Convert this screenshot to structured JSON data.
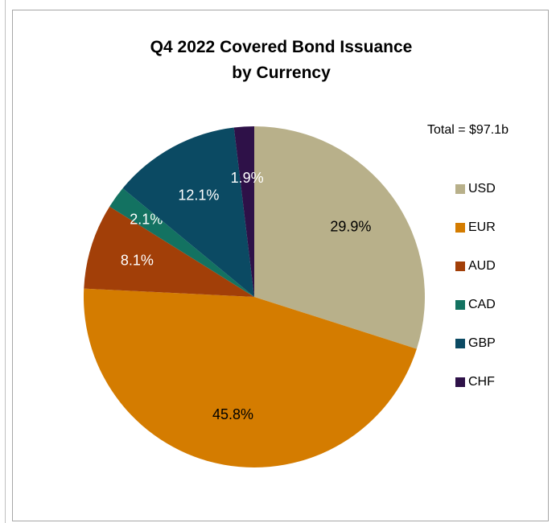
{
  "chart_data": {
    "type": "pie",
    "title": "Q4 2022 Covered Bond Issuance",
    "subtitle": "by Currency",
    "annotation": "Total = $97.1b",
    "legend_position": "right",
    "series": [
      {
        "name": "USD",
        "value": 29.9,
        "label": "29.9%",
        "color": "#b8b08a",
        "label_color": "#000000"
      },
      {
        "name": "EUR",
        "value": 45.8,
        "label": "45.8%",
        "color": "#d47c00",
        "label_color": "#000000"
      },
      {
        "name": "AUD",
        "value": 8.1,
        "label": "8.1%",
        "color": "#a23f08",
        "label_color": "#ffffff"
      },
      {
        "name": "CAD",
        "value": 2.1,
        "label": "2.1%",
        "color": "#137261",
        "label_color": "#ffffff"
      },
      {
        "name": "GBP",
        "value": 12.1,
        "label": "12.1%",
        "color": "#0b4a63",
        "label_color": "#ffffff"
      },
      {
        "name": "CHF",
        "value": 1.9,
        "label": "1.9%",
        "color": "#2e1148",
        "label_color": "#ffffff"
      }
    ]
  }
}
